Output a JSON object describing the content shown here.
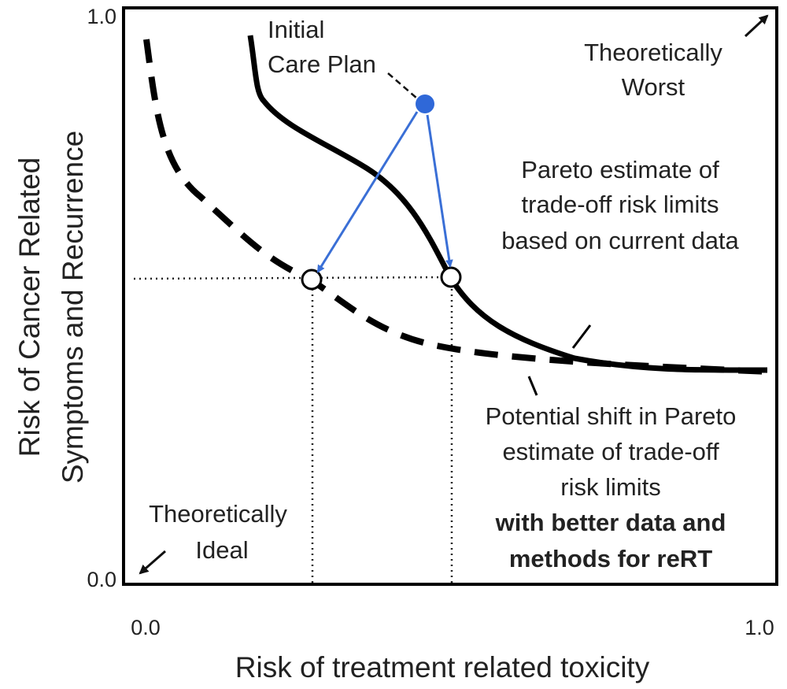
{
  "axes": {
    "y_label_line1": "Risk of Cancer Related",
    "y_label_line2": "Symptoms and Recurrence",
    "x_label": "Risk of treatment related toxicity",
    "y_top_tick": "1.0",
    "y_bottom_tick": "0.0",
    "x_left_tick": "0.0",
    "x_right_tick": "1.0"
  },
  "annotations": {
    "initial_care_plan": [
      "Initial",
      "Care Plan"
    ],
    "theoretically_worst": [
      "Theoretically",
      "Worst"
    ],
    "theoretically_ideal": [
      "Theoretically",
      "Ideal"
    ],
    "pareto_current": [
      "Pareto estimate of",
      "trade-off risk limits",
      "based on current data"
    ],
    "pareto_shift": [
      "Potential shift in Pareto",
      "estimate of trade-off",
      "risk limits"
    ],
    "pareto_shift_bold": [
      "with better data and",
      "methods for reRT"
    ]
  },
  "colors": {
    "frame": "#000000",
    "curves": "#000000",
    "care_plan_point": "#2f68d8",
    "arrows": "#3a6fd6",
    "text": "#222222"
  }
}
